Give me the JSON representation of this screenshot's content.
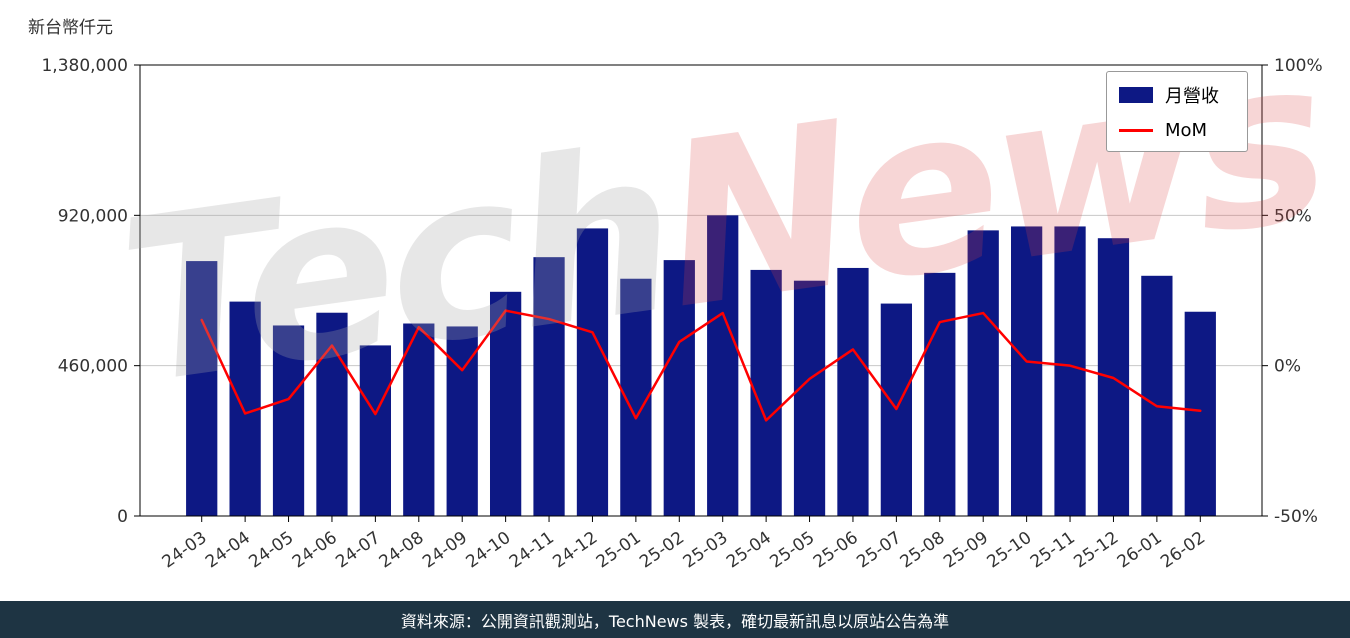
{
  "page": {
    "unit_label": "新台幣仟元",
    "footer": "資料來源：公開資訊觀測站，TechNews 製表，確切最新訊息以原站公告為準",
    "watermark": {
      "part1": "Tech",
      "part2": "News"
    }
  },
  "legend": {
    "bar_label": "月營收",
    "line_label": "MoM"
  },
  "colors": {
    "bar": "#0d1884",
    "line": "#ff0000",
    "grid": "#c8c8c8",
    "frame": "#000000",
    "tick_text": "#333333",
    "footer_bg": "#1e3443",
    "watermark_gray": "rgba(170,170,170,0.28)",
    "watermark_red": "rgba(220,70,70,0.22)"
  },
  "chart_data": {
    "type": "bar",
    "title": "",
    "xlabel": "",
    "ylabel": "新台幣仟元",
    "grid": true,
    "legend_position": "top-right",
    "categories": [
      "24-03",
      "24-04",
      "24-05",
      "24-06",
      "24-07",
      "24-08",
      "24-09",
      "24-10",
      "24-11",
      "24-12",
      "25-01",
      "25-02",
      "25-03",
      "25-04",
      "25-05",
      "25-06",
      "25-07",
      "25-08",
      "25-09",
      "25-10",
      "25-11",
      "25-12",
      "26-01",
      "26-02"
    ],
    "series": [
      {
        "name": "月營收",
        "type": "bar",
        "axis": "left",
        "unit": "新台幣仟元",
        "values": [
          780000,
          656000,
          583000,
          622000,
          522000,
          589000,
          580000,
          686000,
          792000,
          880000,
          726000,
          783000,
          920000,
          753000,
          720000,
          759000,
          650000,
          744000,
          874000,
          886000,
          886000,
          850000,
          735000,
          625000
        ]
      },
      {
        "name": "MoM",
        "type": "line",
        "axis": "right",
        "unit": "%",
        "values": [
          15.2,
          -15.9,
          -11.1,
          6.7,
          -16.1,
          12.8,
          -1.5,
          18.3,
          15.5,
          11.1,
          -17.5,
          7.9,
          17.5,
          -18.2,
          -4.4,
          5.4,
          -14.4,
          14.5,
          17.5,
          1.4,
          0.0,
          -4.1,
          -13.5,
          -15.0
        ]
      }
    ],
    "left_axis": {
      "range": [
        0,
        1380000
      ],
      "tick_values": [
        0,
        460000,
        920000,
        1380000
      ],
      "tick_labels": [
        "0",
        "460,000",
        "920,000",
        "1,380,000"
      ]
    },
    "right_axis": {
      "range": [
        -50,
        100
      ],
      "tick_values": [
        -50,
        0,
        50,
        100
      ],
      "tick_labels": [
        "-50%",
        "0%",
        "50%",
        "100%"
      ]
    }
  }
}
